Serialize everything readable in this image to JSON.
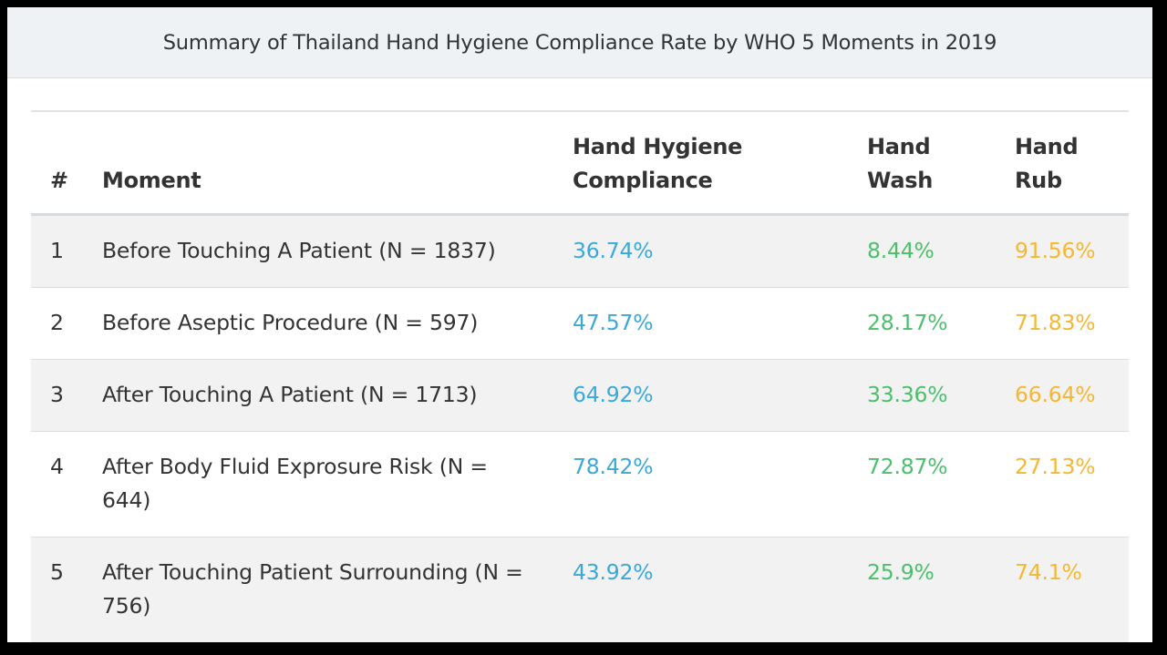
{
  "title": "Summary of Thailand Hand Hygiene Compliance Rate by WHO 5 Moments in 2019",
  "colors": {
    "compliance": "#3aa8d8",
    "hand_wash": "#4cbf6c",
    "hand_rub": "#f5b731",
    "header_bg": "#eef2f5",
    "row_shade": "#f2f2f2"
  },
  "table": {
    "headers": {
      "num": "#",
      "moment": "Moment",
      "compliance": "Hand Hygiene Compliance",
      "hand_wash": "Hand Wash",
      "hand_rub": "Hand Rub"
    },
    "rows": [
      {
        "num": "1",
        "moment": "Before Touching A Patient (N = 1837)",
        "compliance": "36.74%",
        "hand_wash": "8.44%",
        "hand_rub": "91.56%"
      },
      {
        "num": "2",
        "moment": "Before Aseptic Procedure (N = 597)",
        "compliance": "47.57%",
        "hand_wash": "28.17%",
        "hand_rub": "71.83%"
      },
      {
        "num": "3",
        "moment": "After Touching A Patient (N = 1713)",
        "compliance": "64.92%",
        "hand_wash": "33.36%",
        "hand_rub": "66.64%"
      },
      {
        "num": "4",
        "moment": "After Body Fluid Exprosure Risk (N = 644)",
        "compliance": "78.42%",
        "hand_wash": "72.87%",
        "hand_rub": "27.13%"
      },
      {
        "num": "5",
        "moment": "After Touching Patient Surrounding (N = 756)",
        "compliance": "43.92%",
        "hand_wash": "25.9%",
        "hand_rub": "74.1%"
      }
    ]
  }
}
